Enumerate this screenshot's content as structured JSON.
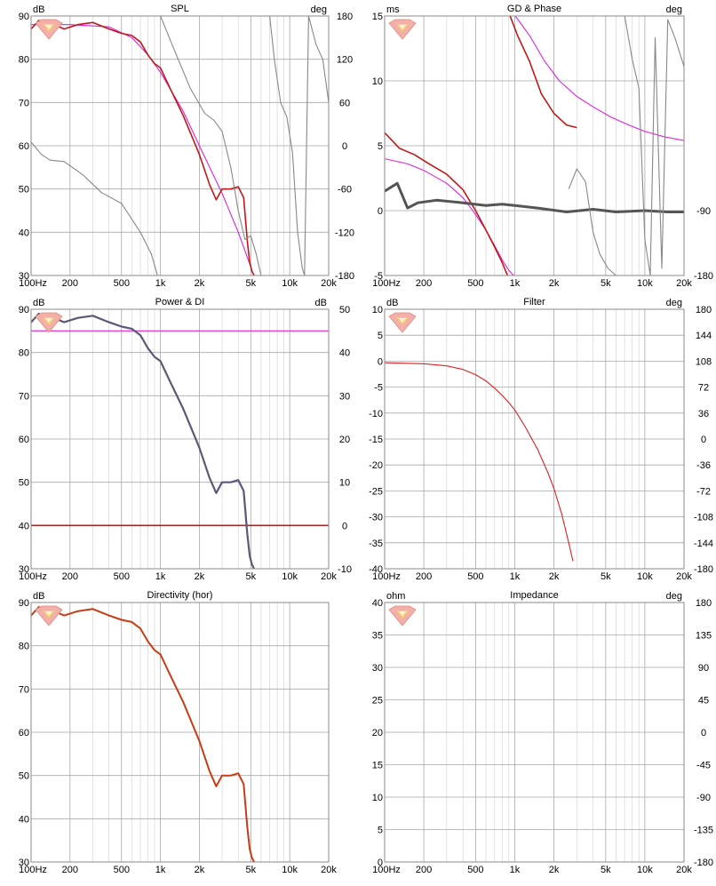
{
  "chart_data": [
    {
      "type": "line",
      "title": "SPL",
      "left_unit": "dB",
      "right_unit": "deg",
      "x_ticks": [
        "100Hz",
        "200",
        "500",
        "1k",
        "2k",
        "5k",
        "10k",
        "20k"
      ],
      "x_tick_values": [
        100,
        200,
        500,
        1000,
        2000,
        5000,
        10000,
        20000
      ],
      "xlim": [
        100,
        20000
      ],
      "xscale": "log",
      "ylim": [
        30,
        90
      ],
      "y_ticks": [
        30,
        40,
        50,
        60,
        70,
        80,
        90
      ],
      "ylim_right": [
        -180,
        180
      ],
      "y_ticks_right": [
        -180,
        -120,
        -60,
        0,
        60,
        120,
        180
      ],
      "series": [
        {
          "color": "#e020e0",
          "axis": "left",
          "x": [
            100,
            200,
            400,
            600,
            800,
            1000,
            1500,
            2000,
            3000,
            4000,
            5000
          ],
          "y": [
            88,
            88,
            87.5,
            85,
            81,
            77,
            68,
            60,
            49,
            40,
            32
          ]
        },
        {
          "color": "#c01818",
          "axis": "left",
          "x": [
            100,
            115,
            130,
            150,
            180,
            230,
            300,
            400,
            500,
            600,
            700,
            800,
            900,
            1000,
            1200,
            1500,
            2000,
            2400,
            2700,
            3000,
            3500,
            4000,
            4400,
            4700,
            4900,
            5100,
            5300
          ],
          "y": [
            87,
            89,
            86,
            88,
            87,
            88,
            88.5,
            87,
            86,
            85.5,
            84,
            81,
            79,
            78,
            73,
            67,
            58,
            51,
            47.5,
            50,
            50,
            50.5,
            48,
            38,
            33,
            31,
            30
          ]
        },
        {
          "color": "#888888",
          "axis": "right",
          "x": [
            100,
            120,
            140,
            180,
            250,
            350,
            500,
            700,
            850,
            950
          ],
          "y": [
            5,
            -12,
            -20,
            -22,
            -40,
            -65,
            -80,
            -120,
            -150,
            -180
          ]
        },
        {
          "color": "#888888",
          "axis": "right",
          "x": [
            1000,
            1300,
            1700,
            2200,
            2600,
            3000,
            3500,
            4000,
            4500,
            5000,
            5500,
            6000
          ],
          "y": [
            180,
            130,
            80,
            45,
            35,
            20,
            -30,
            -90,
            -130,
            -125,
            -150,
            -180
          ]
        },
        {
          "color": "#888888",
          "axis": "right",
          "x": [
            7000,
            7600,
            8500,
            9500,
            10500,
            11500,
            12500,
            13000,
            14000,
            16000,
            18000,
            20000
          ],
          "y": [
            180,
            120,
            60,
            40,
            -10,
            -120,
            -170,
            -180,
            180,
            140,
            120,
            60
          ]
        }
      ]
    },
    {
      "type": "line",
      "title": "GD & Phase",
      "left_unit": "ms",
      "right_unit": "deg",
      "x_ticks": [
        "100Hz",
        "200",
        "500",
        "1k",
        "2k",
        "5k",
        "10k",
        "20k"
      ],
      "x_tick_values": [
        100,
        200,
        500,
        1000,
        2000,
        5000,
        10000,
        20000
      ],
      "xlim": [
        100,
        20000
      ],
      "xscale": "log",
      "ylim": [
        -5,
        15
      ],
      "y_ticks": [
        -5,
        0,
        5,
        10,
        15
      ],
      "ylim_right": [
        -180,
        180
      ],
      "y_ticks_right": [
        -180,
        -90
      ],
      "series": [
        {
          "color": "#e020e0",
          "axis": "left",
          "x": [
            100,
            150,
            200,
            300,
            400,
            500,
            600,
            700,
            800,
            900,
            980
          ],
          "y": [
            4,
            3.6,
            3.1,
            2.1,
            1.0,
            -0.3,
            -1.5,
            -2.7,
            -3.8,
            -4.6,
            -5
          ]
        },
        {
          "color": "#e020e0",
          "axis": "left",
          "x": [
            1010,
            1300,
            1700,
            2200,
            3000,
            4000,
            5500,
            7500,
            10000,
            14000,
            20000
          ],
          "y": [
            15,
            13.5,
            11.5,
            10,
            8.8,
            8,
            7.2,
            6.6,
            6.1,
            5.7,
            5.4
          ]
        },
        {
          "color": "#c01818",
          "axis": "left",
          "x": [
            100,
            130,
            170,
            220,
            300,
            400,
            500,
            600,
            700,
            800,
            880
          ],
          "y": [
            6,
            4.8,
            4.3,
            3.6,
            2.8,
            1.6,
            0,
            -1.5,
            -2.8,
            -4,
            -5
          ]
        },
        {
          "color": "#c01818",
          "axis": "left",
          "x": [
            920,
            1050,
            1300,
            1600,
            2000,
            2500,
            3000
          ],
          "y": [
            15,
            13.5,
            11.5,
            9,
            7.5,
            6.6,
            6.4
          ]
        },
        {
          "color": "#555555",
          "axis": "left",
          "x": [
            100,
            125,
            150,
            180,
            250,
            400,
            600,
            800,
            1000,
            1500,
            2500,
            4000,
            6000,
            10000,
            15000,
            20000
          ],
          "y": [
            1.5,
            2.1,
            0.2,
            0.6,
            0.8,
            0.6,
            0.4,
            0.5,
            0.4,
            0.2,
            -0.1,
            0.1,
            -0.1,
            0,
            -0.1,
            -0.1
          ]
        },
        {
          "color": "#888888",
          "axis": "right",
          "x": [
            2600,
            3000,
            3500,
            4000,
            4500,
            5200,
            6000
          ],
          "y": [
            -60,
            -32,
            -50,
            -120,
            -150,
            -170,
            -180
          ]
        },
        {
          "color": "#888888",
          "axis": "right",
          "x": [
            7000,
            8000,
            9000,
            10000,
            11000,
            12000,
            13500,
            15000,
            17000,
            20000
          ],
          "y": [
            180,
            120,
            80,
            -130,
            -180,
            150,
            -170,
            175,
            150,
            110
          ]
        }
      ]
    },
    {
      "type": "line",
      "title": "Power & DI",
      "left_unit": "dB",
      "right_unit": "dB",
      "x_ticks": [
        "100Hz",
        "200",
        "500",
        "1k",
        "2k",
        "5k",
        "10k",
        "20k"
      ],
      "x_tick_values": [
        100,
        200,
        500,
        1000,
        2000,
        5000,
        10000,
        20000
      ],
      "xlim": [
        100,
        20000
      ],
      "xscale": "log",
      "ylim": [
        30,
        90
      ],
      "y_ticks": [
        30,
        40,
        50,
        60,
        70,
        80,
        90
      ],
      "ylim_right": [
        -10,
        50
      ],
      "y_ticks_right": [
        -10,
        0,
        10,
        20,
        30,
        40,
        50
      ],
      "series": [
        {
          "color": "#e020e0",
          "axis": "left",
          "x": [
            100,
            20000
          ],
          "y": [
            85,
            85
          ]
        },
        {
          "color": "#c01818",
          "axis": "left",
          "x": [
            100,
            20000
          ],
          "y": [
            40,
            40
          ]
        },
        {
          "color": "#5a5a78",
          "axis": "left",
          "x": [
            100,
            115,
            130,
            150,
            180,
            230,
            300,
            400,
            500,
            600,
            700,
            800,
            900,
            1000,
            1200,
            1500,
            2000,
            2400,
            2700,
            3000,
            3500,
            4000,
            4400,
            4700,
            4900,
            5100,
            5300
          ],
          "y": [
            87,
            89,
            86,
            88,
            87,
            88,
            88.5,
            87,
            86,
            85.5,
            84,
            81,
            79,
            78,
            73,
            67,
            58,
            51,
            47.5,
            50,
            50,
            50.5,
            48,
            38,
            33,
            31,
            30
          ]
        }
      ]
    },
    {
      "type": "line",
      "title": "Filter",
      "left_unit": "dB",
      "right_unit": "deg",
      "x_ticks": [
        "100Hz",
        "200",
        "500",
        "1k",
        "2k",
        "5k",
        "10k",
        "20k"
      ],
      "x_tick_values": [
        100,
        200,
        500,
        1000,
        2000,
        5000,
        10000,
        20000
      ],
      "xlim": [
        100,
        20000
      ],
      "xscale": "log",
      "ylim": [
        -40,
        10
      ],
      "y_ticks": [
        -40,
        -35,
        -30,
        -25,
        -20,
        -15,
        -10,
        -5,
        0,
        5,
        10
      ],
      "ylim_right": [
        -180,
        180
      ],
      "y_ticks_right": [
        -180,
        -144,
        -108,
        -72,
        -36,
        0,
        36,
        72,
        108,
        144,
        180
      ],
      "series": [
        {
          "color": "#e02020",
          "axis": "left",
          "x": [
            100,
            200,
            300,
            400,
            500,
            600,
            700,
            800,
            900,
            1000,
            1200,
            1500,
            1800,
            2000,
            2300,
            2600,
            2800
          ],
          "y": [
            -0.3,
            -0.5,
            -0.9,
            -1.6,
            -2.6,
            -3.8,
            -5.2,
            -6.6,
            -8,
            -9.4,
            -12.6,
            -17,
            -21.5,
            -24.5,
            -29.5,
            -35,
            -38.5
          ]
        }
      ]
    },
    {
      "type": "line",
      "title": "Directivity (hor)",
      "left_unit": "dB",
      "right_unit": "",
      "x_ticks": [
        "100Hz",
        "200",
        "500",
        "1k",
        "2k",
        "5k",
        "10k",
        "20k"
      ],
      "x_tick_values": [
        100,
        200,
        500,
        1000,
        2000,
        5000,
        10000,
        20000
      ],
      "xlim": [
        100,
        20000
      ],
      "xscale": "log",
      "ylim": [
        30,
        90
      ],
      "y_ticks": [
        30,
        40,
        50,
        60,
        70,
        80,
        90
      ],
      "series": [
        {
          "color": "#c83c14",
          "axis": "left",
          "x": [
            100,
            115,
            130,
            150,
            180,
            230,
            300,
            400,
            500,
            600,
            700,
            800,
            900,
            1000,
            1200,
            1500,
            2000,
            2400,
            2700,
            3000,
            3500,
            4000,
            4400,
            4700,
            4900,
            5100,
            5300
          ],
          "y": [
            87,
            89,
            86,
            88,
            87,
            88,
            88.5,
            87,
            86,
            85.5,
            84,
            81,
            79,
            78,
            73,
            67,
            58,
            51,
            47.5,
            50,
            50,
            50.5,
            48,
            38,
            33,
            31,
            30
          ]
        }
      ]
    },
    {
      "type": "line",
      "title": "Impedance",
      "left_unit": "ohm",
      "right_unit": "deg",
      "x_ticks": [
        "100Hz",
        "200",
        "500",
        "1k",
        "2k",
        "5k",
        "10k",
        "20k"
      ],
      "x_tick_values": [
        100,
        200,
        500,
        1000,
        2000,
        5000,
        10000,
        20000
      ],
      "xlim": [
        100,
        20000
      ],
      "xscale": "log",
      "ylim": [
        0,
        40
      ],
      "y_ticks": [
        0,
        5,
        10,
        15,
        20,
        25,
        30,
        35,
        40
      ],
      "ylim_right": [
        -180,
        180
      ],
      "y_ticks_right": [
        -180,
        -135,
        -90,
        -45,
        0,
        45,
        90,
        135,
        180
      ],
      "series": []
    }
  ]
}
